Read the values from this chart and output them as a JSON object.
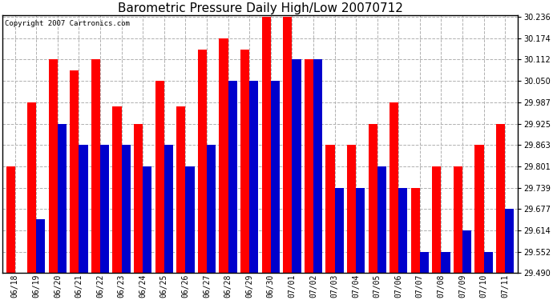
{
  "title": "Barometric Pressure Daily High/Low 20070712",
  "copyright": "Copyright 2007 Cartronics.com",
  "dates": [
    "06/18",
    "06/19",
    "06/20",
    "06/21",
    "06/22",
    "06/23",
    "06/24",
    "06/25",
    "06/26",
    "06/27",
    "06/28",
    "06/29",
    "06/30",
    "07/01",
    "07/02",
    "07/03",
    "07/04",
    "07/05",
    "07/06",
    "07/07",
    "07/08",
    "07/09",
    "07/10",
    "07/11"
  ],
  "highs": [
    29.801,
    29.987,
    30.112,
    30.08,
    30.112,
    29.975,
    29.925,
    30.05,
    29.975,
    30.14,
    30.174,
    30.14,
    30.236,
    30.236,
    30.112,
    29.863,
    29.863,
    29.925,
    29.987,
    29.739,
    29.801,
    29.801,
    29.863,
    29.925
  ],
  "lows": [
    29.49,
    29.646,
    29.925,
    29.863,
    29.863,
    29.863,
    29.801,
    29.863,
    29.8,
    29.863,
    30.05,
    30.05,
    30.05,
    30.112,
    30.112,
    29.739,
    29.739,
    29.801,
    29.739,
    29.552,
    29.552,
    29.614,
    29.552,
    29.677
  ],
  "high_color": "#ff0000",
  "low_color": "#0000cc",
  "bg_color": "#ffffff",
  "plot_bg_color": "#ffffff",
  "grid_color": "#b0b0b0",
  "title_fontsize": 11,
  "tick_fontsize": 7,
  "copyright_fontsize": 6.5,
  "ylim_min": 29.49,
  "ylim_max": 30.236,
  "yticks": [
    29.49,
    29.552,
    29.614,
    29.677,
    29.739,
    29.801,
    29.863,
    29.925,
    29.987,
    30.05,
    30.112,
    30.174,
    30.236
  ]
}
